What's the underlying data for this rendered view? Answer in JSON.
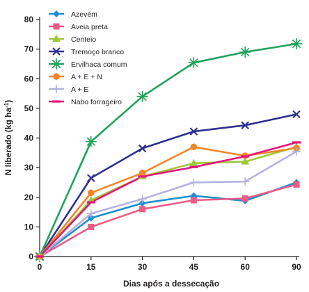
{
  "chart_data": {
    "type": "line",
    "title": "",
    "xlabel": "Dias após a dessecação",
    "ylabel": "N liberado (kg ha",
    "ylabel_sup": "-1",
    "ylabel_close": ")",
    "x": [
      0,
      15,
      30,
      45,
      60,
      90
    ],
    "x_tick_labels": [
      "0",
      "15",
      "30",
      "45",
      "60",
      "90"
    ],
    "xlim": [
      0,
      90
    ],
    "ylim": [
      0,
      80
    ],
    "y_ticks": [
      0,
      10,
      20,
      30,
      40,
      50,
      60,
      70,
      80
    ],
    "x_scale": "categorical-equal-spacing",
    "grid": false,
    "legend_position": "top-left",
    "series": [
      {
        "name": "Azevém",
        "color": "#1b8fd2",
        "marker": "diamond",
        "values": [
          0,
          13,
          18,
          20.5,
          18.8,
          25
        ]
      },
      {
        "name": "Aveia preta",
        "color": "#ec5b85",
        "marker": "square",
        "values": [
          0,
          10,
          16,
          19,
          19.6,
          24.3
        ]
      },
      {
        "name": "Centeio",
        "color": "#a0c739",
        "marker": "triangle",
        "values": [
          0,
          19,
          27,
          31.5,
          32,
          37
        ]
      },
      {
        "name": "Tremoço branco",
        "color": "#2e3192",
        "marker": "x",
        "values": [
          0,
          26.5,
          36.5,
          42.2,
          44.3,
          48
        ]
      },
      {
        "name": "Ervilhaca comum",
        "color": "#1fa35c",
        "marker": "asterisk",
        "values": [
          0,
          38.8,
          54,
          65.4,
          69,
          71.8
        ]
      },
      {
        "name": "A + E + N",
        "color": "#f0862a",
        "marker": "circle",
        "values": [
          0,
          21.5,
          28.2,
          37,
          34,
          36.6
        ]
      },
      {
        "name": "A + E",
        "color": "#b4b3dd",
        "marker": "plus",
        "values": [
          0,
          14.5,
          19.4,
          25,
          25.3,
          35.5
        ]
      },
      {
        "name": "Nabo forrageiro",
        "color": "#e6157b",
        "marker": "dash",
        "values": [
          0,
          18.3,
          27,
          30.2,
          33.8,
          38.5
        ]
      }
    ]
  }
}
